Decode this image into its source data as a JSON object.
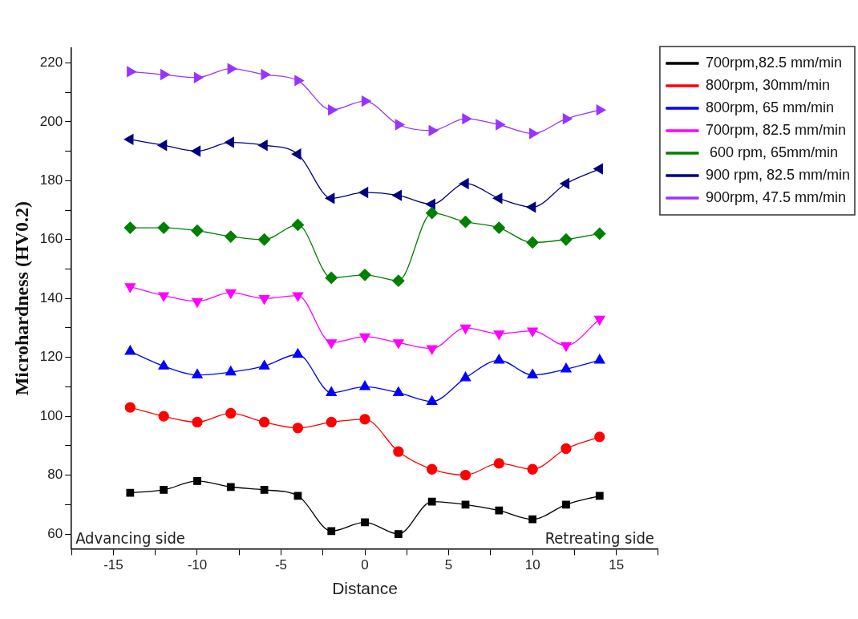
{
  "chart_data": {
    "type": "line",
    "xlabel": "Distance",
    "ylabel": "Microhardness (HV0.2)",
    "x": [
      -14,
      -12,
      -10,
      -8,
      -6,
      -4,
      -2,
      0,
      2,
      4,
      6,
      8,
      10,
      12,
      14
    ],
    "xlim": [
      -17.5,
      17.5
    ],
    "xticks": [
      {
        "value": -17.5,
        "label": null
      },
      -15,
      {
        "value": -12.5,
        "label": null
      },
      -10,
      {
        "value": -7.5,
        "label": null
      },
      -5,
      {
        "value": -2.5,
        "label": null
      },
      0,
      {
        "value": 2.5,
        "label": null
      },
      5,
      {
        "value": 7.5,
        "label": null
      },
      10,
      {
        "value": 12.5,
        "label": null
      },
      15,
      {
        "value": 17.5,
        "label": null
      }
    ],
    "ylim": [
      55,
      225
    ],
    "yticks": [
      60,
      {
        "value": 70,
        "label": null
      },
      80,
      {
        "value": 90,
        "label": null
      },
      100,
      {
        "value": 110,
        "label": null
      },
      120,
      {
        "value": 130,
        "label": null
      },
      140,
      {
        "value": 150,
        "label": null
      },
      160,
      {
        "value": 170,
        "label": null
      },
      180,
      {
        "value": 190,
        "label": null
      },
      200,
      {
        "value": 210,
        "label": null
      },
      220
    ],
    "grid": false,
    "legend": "top right",
    "line_style": "solid",
    "series": [
      {
        "name": "700rpm,82.5 mm/min",
        "color": "#000000",
        "marker": "square",
        "values": [
          74,
          75,
          78,
          76,
          75,
          73,
          61,
          64,
          60,
          71,
          70,
          68,
          65,
          70,
          73
        ]
      },
      {
        "name": "800rpm, 30mm/min",
        "color": "#ff0000",
        "marker": "circle",
        "values": [
          103,
          100,
          98,
          101,
          98,
          96,
          98,
          99,
          88,
          82,
          80,
          84,
          82,
          89,
          93
        ]
      },
      {
        "name": "800rpm, 65 mm/min",
        "color": "#0000ff",
        "marker": "triangle",
        "values": [
          122,
          117,
          114,
          115,
          117,
          121,
          108,
          110,
          108,
          105,
          113,
          119,
          114,
          116,
          119
        ]
      },
      {
        "name": "700rpm, 82.5 mm/min",
        "color": "#ff00ff",
        "marker": "triangle-down",
        "values": [
          144,
          141,
          139,
          142,
          140,
          141,
          125,
          127,
          125,
          123,
          130,
          128,
          129,
          124,
          133
        ]
      },
      {
        "name": " 600 rpm, 65mm/min",
        "color": "#008000",
        "marker": "diamond",
        "values": [
          164,
          164,
          163,
          161,
          160,
          165,
          147,
          148,
          146,
          169,
          166,
          164,
          159,
          160,
          162
        ]
      },
      {
        "name": "900 rpm, 82.5 mm/min",
        "color": "#000080",
        "marker": "triangle-left",
        "values": [
          194,
          192,
          190,
          193,
          192,
          189,
          174,
          176,
          175,
          172,
          179,
          174,
          171,
          179,
          184
        ]
      },
      {
        "name": "900rpm, 47.5 mm/min",
        "color": "#9933ff",
        "marker": "triangle-right",
        "values": [
          217,
          216,
          215,
          218,
          216,
          214,
          204,
          207,
          199,
          197,
          201,
          199,
          196,
          201,
          204
        ]
      }
    ],
    "annotations": [
      "Advancing side",
      "Retreating side"
    ]
  }
}
